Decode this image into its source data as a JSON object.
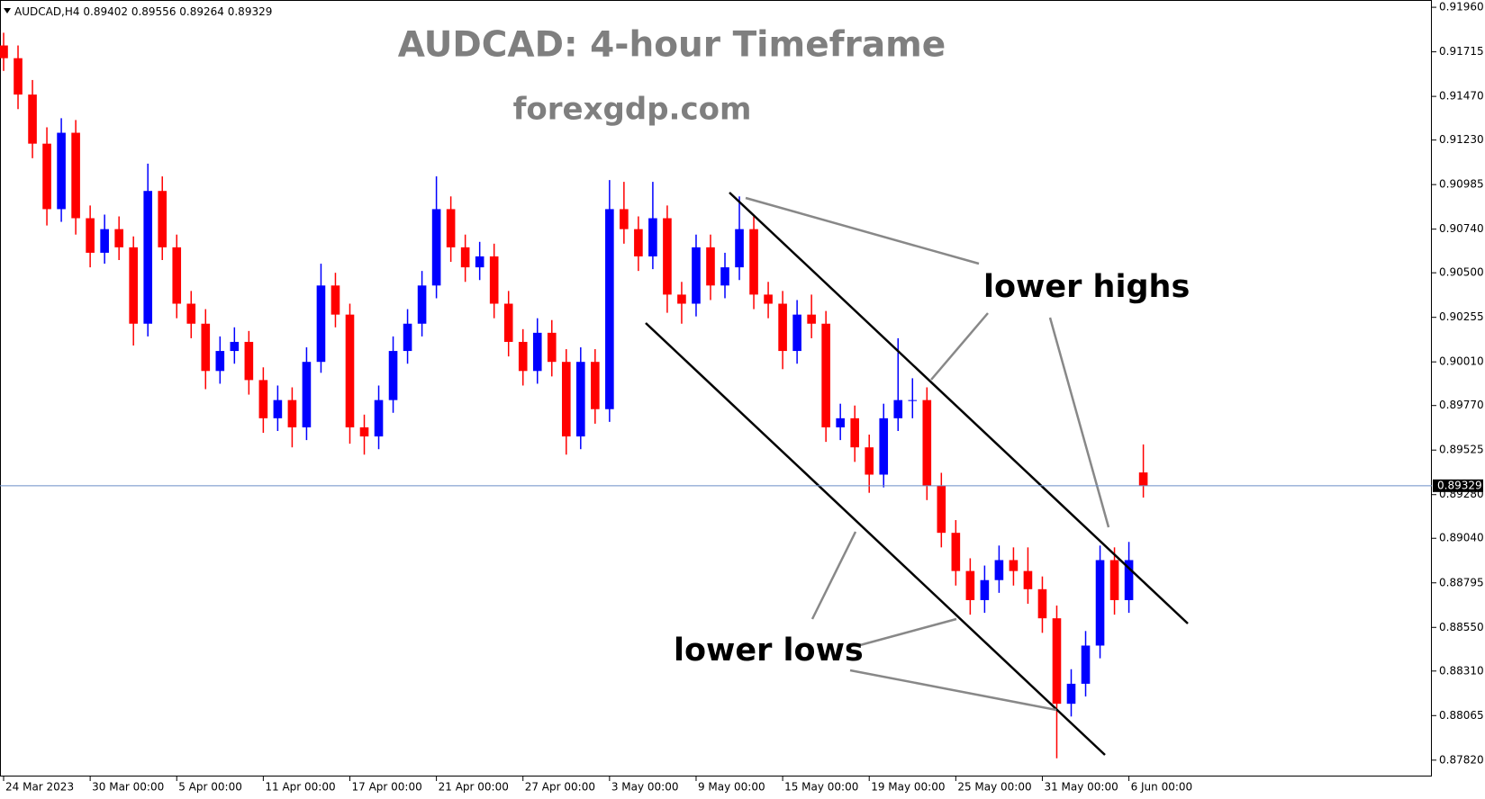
{
  "chart_data": {
    "type": "candlestick",
    "symbol": "AUDCAD,H4",
    "title": "AUDCAD: 4-hour Timeframe",
    "subtitle": "forexgdp.com",
    "annotations": [
      "lower highs",
      "lower lows"
    ],
    "up_color": "#0000ff",
    "down_color": "#ff0000",
    "price_line_color": "#6a8ec8",
    "x": [
      0,
      4,
      8,
      12,
      16,
      20,
      24,
      28,
      32,
      36,
      40,
      44,
      48,
      52,
      56,
      60,
      64,
      68,
      72,
      76,
      80,
      84,
      88,
      92,
      96,
      100,
      104,
      108,
      112,
      116,
      120,
      124,
      128,
      132,
      136,
      140,
      144,
      148,
      152,
      156,
      160,
      164,
      168,
      172,
      176,
      180,
      184,
      188,
      192,
      196,
      200,
      204,
      208,
      212,
      216,
      220,
      224,
      228,
      232,
      236,
      240,
      244,
      248,
      252,
      256,
      260,
      264,
      268,
      272,
      276,
      280,
      284,
      288,
      292,
      296,
      300,
      304,
      308,
      312,
      316
    ],
    "open": [
      0.9175,
      0.9168,
      0.9148,
      0.9121,
      0.9085,
      0.9127,
      0.908,
      0.9061,
      0.9074,
      0.9064,
      0.9022,
      0.9095,
      0.9064,
      0.9033,
      0.9022,
      0.8996,
      0.9007,
      0.9012,
      0.8991,
      0.897,
      0.898,
      0.8965,
      0.9001,
      0.9043,
      0.9027,
      0.8965,
      0.896,
      0.898,
      0.9007,
      0.9022,
      0.9043,
      0.9085,
      0.9064,
      0.9053,
      0.9059,
      0.9033,
      0.9012,
      0.8996,
      0.9017,
      0.9001,
      0.896,
      0.9001,
      0.8975,
      0.9085,
      0.9074,
      0.9059,
      0.908,
      0.9038,
      0.9033,
      0.9064,
      0.9043,
      0.9053,
      0.9074,
      0.9038,
      0.9033,
      0.9007,
      0.9027,
      0.9022,
      0.8965,
      0.897,
      0.8954,
      0.8939,
      0.897,
      0.898,
      0.898,
      0.8933,
      0.8907,
      0.8886,
      0.887,
      0.8881,
      0.8892,
      0.8886,
      0.8876,
      0.886,
      0.8813,
      0.8824,
      0.8845,
      0.8892,
      0.887,
      0.89402
    ],
    "high": [
      0.9182,
      0.9175,
      0.9156,
      0.913,
      0.9135,
      0.9134,
      0.9087,
      0.9082,
      0.9081,
      0.907,
      0.911,
      0.9103,
      0.9071,
      0.904,
      0.903,
      0.9015,
      0.902,
      0.9018,
      0.8998,
      0.8988,
      0.8987,
      0.9009,
      0.9055,
      0.905,
      0.9033,
      0.8972,
      0.8988,
      0.9015,
      0.903,
      0.9051,
      0.9103,
      0.9092,
      0.9071,
      0.9067,
      0.9066,
      0.904,
      0.9019,
      0.9025,
      0.9024,
      0.9008,
      0.9009,
      0.9008,
      0.9101,
      0.91,
      0.9081,
      0.91,
      0.9087,
      0.9045,
      0.9071,
      0.9071,
      0.9061,
      0.9092,
      0.9081,
      0.9045,
      0.904,
      0.9035,
      0.9038,
      0.9029,
      0.8978,
      0.8977,
      0.8961,
      0.8978,
      0.9014,
      0.8992,
      0.8987,
      0.894,
      0.8914,
      0.8893,
      0.8889,
      0.89,
      0.8899,
      0.8899,
      0.8883,
      0.8867,
      0.8832,
      0.8853,
      0.89,
      0.8899,
      0.8902,
      0.89556
    ],
    "low": [
      0.9161,
      0.914,
      0.9113,
      0.9076,
      0.9078,
      0.9071,
      0.9053,
      0.9055,
      0.9057,
      0.901,
      0.9015,
      0.9057,
      0.9025,
      0.9014,
      0.8986,
      0.8989,
      0.9,
      0.8983,
      0.8962,
      0.8963,
      0.8954,
      0.8958,
      0.8995,
      0.902,
      0.8956,
      0.895,
      0.8953,
      0.8973,
      0.9,
      0.9015,
      0.9036,
      0.9056,
      0.9045,
      0.9046,
      0.9025,
      0.9004,
      0.8988,
      0.8989,
      0.8993,
      0.895,
      0.8953,
      0.8967,
      0.8968,
      0.9066,
      0.9051,
      0.9052,
      0.9028,
      0.9022,
      0.9026,
      0.9035,
      0.9036,
      0.9046,
      0.903,
      0.9025,
      0.8997,
      0.9,
      0.9014,
      0.8957,
      0.8958,
      0.8946,
      0.8929,
      0.8932,
      0.8963,
      0.897,
      0.8925,
      0.8899,
      0.8878,
      0.8862,
      0.8863,
      0.8874,
      0.8878,
      0.8868,
      0.8852,
      0.8783,
      0.8806,
      0.8817,
      0.8838,
      0.8862,
      0.8863,
      0.89264
    ],
    "close": [
      0.9168,
      0.9148,
      0.9121,
      0.9085,
      0.9127,
      0.908,
      0.9061,
      0.9074,
      0.9064,
      0.9022,
      0.9095,
      0.9064,
      0.9033,
      0.9022,
      0.8996,
      0.9007,
      0.9012,
      0.8991,
      0.897,
      0.898,
      0.8965,
      0.9001,
      0.9043,
      0.9027,
      0.8965,
      0.896,
      0.898,
      0.9007,
      0.9022,
      0.9043,
      0.9085,
      0.9064,
      0.9053,
      0.9059,
      0.9033,
      0.9012,
      0.8996,
      0.9017,
      0.9001,
      0.896,
      0.9001,
      0.8975,
      0.9085,
      0.9074,
      0.9059,
      0.908,
      0.9038,
      0.9033,
      0.9064,
      0.9043,
      0.9053,
      0.9074,
      0.9038,
      0.9033,
      0.9007,
      0.9027,
      0.9022,
      0.8965,
      0.897,
      0.8954,
      0.8939,
      0.897,
      0.898,
      0.898,
      0.8933,
      0.8907,
      0.8886,
      0.887,
      0.8881,
      0.8892,
      0.8886,
      0.8876,
      0.886,
      0.8813,
      0.8824,
      0.8845,
      0.8892,
      0.887,
      0.8892,
      0.89329
    ],
    "xlim": [
      -1,
      396
    ],
    "ylim": [
      0.8773,
      0.92
    ],
    "xticks": [
      {
        "value": 0,
        "label": "24 Mar 2023"
      },
      {
        "value": 24,
        "label": "30 Mar 00:00"
      },
      {
        "value": 48,
        "label": "5 Apr 00:00"
      },
      {
        "value": 72,
        "label": "11 Apr 00:00"
      },
      {
        "value": 96,
        "label": "17 Apr 00:00"
      },
      {
        "value": 120,
        "label": "21 Apr 00:00"
      },
      {
        "value": 144,
        "label": "27 Apr 00:00"
      },
      {
        "value": 168,
        "label": "3 May 00:00"
      },
      {
        "value": 192,
        "label": "9 May 00:00"
      },
      {
        "value": 216,
        "label": "15 May 00:00"
      },
      {
        "value": 240,
        "label": "19 May 00:00"
      },
      {
        "value": 264,
        "label": "25 May 00:00"
      },
      {
        "value": 288,
        "label": "31 May 00:00"
      },
      {
        "value": 312,
        "label": "6 Jun 00:00"
      }
    ],
    "yticks": [
      {
        "value": 0.9196,
        "label": "0.91960"
      },
      0.91715,
      {
        "value": 0.9147,
        "label": "0.91470"
      },
      {
        "value": 0.9123,
        "label": "0.91230"
      },
      0.90985,
      {
        "value": 0.9074,
        "label": "0.90740"
      },
      {
        "value": 0.905,
        "label": "0.90500"
      },
      0.90255,
      {
        "value": 0.9001,
        "label": "0.90010"
      },
      {
        "value": 0.8977,
        "label": "0.89770"
      },
      0.89525,
      {
        "value": 0.8928,
        "label": "0.89280"
      },
      {
        "value": 0.8904,
        "label": "0.89040"
      },
      0.88795,
      {
        "value": 0.8855,
        "label": "0.88550"
      },
      {
        "value": 0.8831,
        "label": "0.88310"
      },
      0.88065,
      {
        "value": 0.8782,
        "label": "0.87820"
      }
    ]
  }
}
